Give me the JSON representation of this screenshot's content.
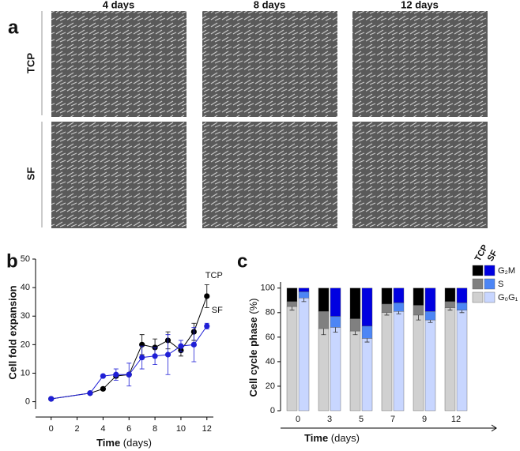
{
  "panel_a": {
    "label": "a",
    "columns": [
      "4 days",
      "8 days",
      "12 days"
    ],
    "rows": [
      "TCP",
      "SF"
    ]
  },
  "chart_data": [
    {
      "type": "line",
      "panel": "b",
      "ylabel": "Cell fold expansion",
      "xlabel": "Time",
      "xunit": "(days)",
      "x": [
        0,
        3,
        4,
        5,
        6,
        7,
        8,
        9,
        10,
        11,
        12
      ],
      "series": [
        {
          "name": "TCP",
          "color": "#000000",
          "values": [
            1,
            3,
            4.5,
            9,
            9.5,
            20,
            19,
            21.5,
            18,
            24.5,
            37
          ],
          "errors": [
            null,
            null,
            null,
            null,
            null,
            3.5,
            3,
            3,
            2,
            3,
            4
          ]
        },
        {
          "name": "SF",
          "color": "#1f1fd6",
          "values": [
            1,
            3,
            9,
            9.5,
            9.5,
            15.5,
            16,
            16.5,
            19.5,
            20,
            26.5
          ],
          "errors": [
            null,
            null,
            null,
            2,
            4,
            4,
            3,
            7,
            2,
            6,
            1
          ]
        }
      ],
      "xlim": [
        -1.2,
        12.5
      ],
      "xticks": [
        0,
        2,
        4,
        6,
        8,
        10,
        12
      ],
      "ylim": [
        -1.5,
        50
      ],
      "yticks": [
        0,
        10,
        20,
        30,
        40,
        50
      ]
    },
    {
      "type": "stacked-bar",
      "panel": "c",
      "ylabel": "Cell cycle phase",
      "yunit": "(%)",
      "xlabel": "Time",
      "xunit": "(days)",
      "categories": [
        "0",
        "3",
        "5",
        "7",
        "9",
        "12"
      ],
      "groups": [
        "TCP",
        "SF"
      ],
      "series": [
        {
          "name": "G₀G₁",
          "colors": [
            "#d0d0d0",
            "#c8d6ff"
          ],
          "values": [
            [
              85,
              67,
              65,
              80,
              78,
              84
            ],
            [
              92,
              68,
              59,
              81,
              74,
              82
            ]
          ],
          "errors": [
            [
              3,
              5,
              3,
              2,
              4,
              2
            ],
            [
              3,
              4,
              3,
              2,
              2,
              2
            ]
          ]
        },
        {
          "name": "S",
          "colors": [
            "#808080",
            "#4d86f5"
          ],
          "values": [
            [
              4,
              14,
              10,
              7,
              8,
              5
            ],
            [
              5,
              9,
              10,
              7,
              7,
              6
            ]
          ]
        },
        {
          "name": "G₂M",
          "colors": [
            "#000000",
            "#0000e0"
          ],
          "values": [
            [
              11,
              19,
              25,
              13,
              14,
              11
            ],
            [
              3,
              23,
              31,
              12,
              19,
              12
            ]
          ]
        }
      ],
      "ylim": [
        0,
        105
      ],
      "yticks": [
        0,
        20,
        40,
        60,
        80,
        100
      ]
    }
  ]
}
